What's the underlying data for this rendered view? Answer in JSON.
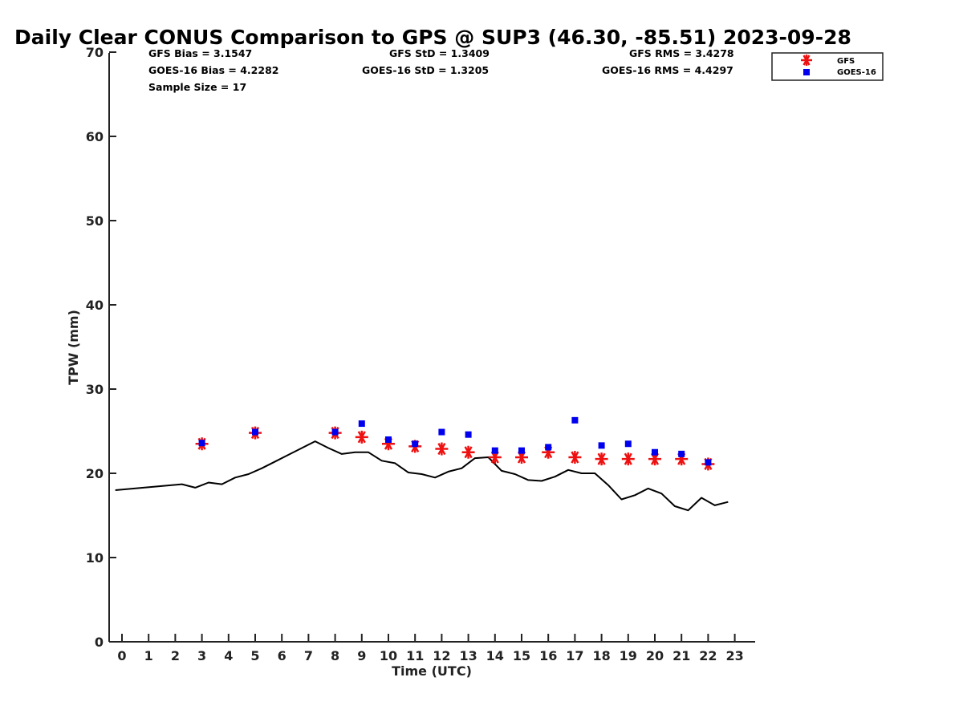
{
  "chart_data": {
    "type": "scatter",
    "title": "Daily Clear CONUS Comparison to GPS @ SUP3 (46.30, -85.51) 2023-09-28",
    "xlabel": "Time (UTC)",
    "ylabel": "TPW (mm)",
    "xlim": [
      -0.5,
      23.7
    ],
    "ylim": [
      0,
      70
    ],
    "xticks": [
      0,
      1,
      2,
      3,
      4,
      5,
      6,
      7,
      8,
      9,
      10,
      11,
      12,
      13,
      14,
      15,
      16,
      17,
      18,
      19,
      20,
      21,
      22,
      23
    ],
    "yticks": [
      0,
      10,
      20,
      30,
      40,
      50,
      60,
      70
    ],
    "grid": false,
    "legend_position": "top-right",
    "stats": {
      "gfs_bias": "GFS Bias = 3.1547",
      "goes_bias": "GOES-16 Bias = 4.2282",
      "sample_size": "Sample Size = 17",
      "gfs_std": "GFS StD = 1.3409",
      "goes_std": "GOES-16 StD = 1.3205",
      "gfs_rms": "GFS RMS = 3.4278",
      "goes_rms": "GOES-16 RMS = 4.4297"
    },
    "series": [
      {
        "name": "GFS",
        "marker": "asterisk",
        "color": "#ee1111",
        "x": [
          3,
          5,
          8,
          9,
          10,
          11,
          12,
          13,
          14,
          15,
          16,
          17,
          18,
          19,
          20,
          21,
          22
        ],
        "y": [
          23.5,
          24.8,
          24.8,
          24.3,
          23.5,
          23.2,
          22.9,
          22.5,
          21.9,
          21.9,
          22.5,
          21.9,
          21.7,
          21.7,
          21.7,
          21.7,
          21.1
        ]
      },
      {
        "name": "GOES-16",
        "marker": "square",
        "color": "#0000ee",
        "x": [
          3,
          5,
          8,
          9,
          10,
          11,
          12,
          13,
          14,
          15,
          16,
          17,
          18,
          19,
          20,
          21,
          22
        ],
        "y": [
          23.6,
          24.9,
          24.9,
          25.9,
          24.0,
          23.5,
          24.9,
          24.6,
          22.7,
          22.7,
          23.1,
          26.3,
          23.3,
          23.5,
          22.5,
          22.3,
          21.3
        ]
      },
      {
        "marker": "line",
        "color": "#000000",
        "x": [
          -0.25,
          2.25,
          2.75,
          3.25,
          3.75,
          4.25,
          4.75,
          5.25,
          5.75,
          6.25,
          6.75,
          7.25,
          7.75,
          8.25,
          8.75,
          9.25,
          9.75,
          10.25,
          10.75,
          11.25,
          11.75,
          12.25,
          12.75,
          13.25,
          13.75,
          14.25,
          14.75,
          15.25,
          15.75,
          16.25,
          16.75,
          17.25,
          17.75,
          18.25,
          18.75,
          19.25,
          19.75,
          20.25,
          20.75,
          21.25,
          21.75,
          22.25,
          22.75
        ],
        "y": [
          18.0,
          18.7,
          18.3,
          18.9,
          18.7,
          19.5,
          19.9,
          20.6,
          21.4,
          22.2,
          23.0,
          23.8,
          23.0,
          22.3,
          22.5,
          22.5,
          21.5,
          21.2,
          20.1,
          19.9,
          19.5,
          20.2,
          20.6,
          21.8,
          21.9,
          20.3,
          19.9,
          19.2,
          19.1,
          19.6,
          20.4,
          20.0,
          20.0,
          18.6,
          16.9,
          17.4,
          18.2,
          17.6,
          16.1,
          15.6,
          17.1,
          16.2,
          16.6
        ]
      }
    ]
  }
}
